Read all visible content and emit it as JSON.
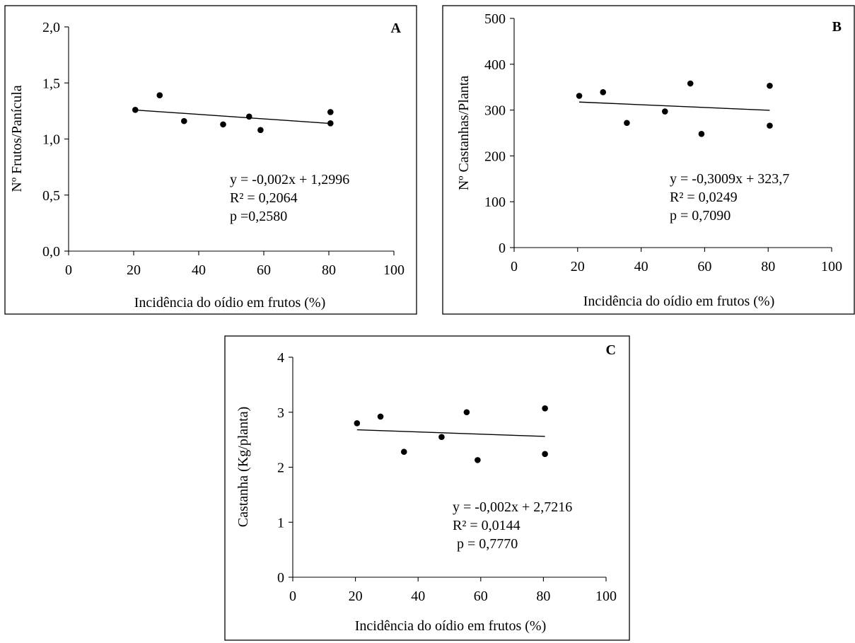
{
  "chart_data": [
    {
      "type": "scatter",
      "panel_label": "A",
      "xlabel": "Incidência do oídio em frutos (%)",
      "ylabel": "Nº Frutos/Panícula",
      "xlim": [
        0,
        100
      ],
      "ylim": [
        0,
        2
      ],
      "x_ticks": [
        "0",
        "20",
        "40",
        "60",
        "80",
        "100"
      ],
      "y_ticks": [
        "0,0",
        "0,5",
        "1,0",
        "1,5",
        "2,0"
      ],
      "points": [
        {
          "x": 20.5,
          "y": 1.26
        },
        {
          "x": 28,
          "y": 1.39
        },
        {
          "x": 35.5,
          "y": 1.16
        },
        {
          "x": 47.5,
          "y": 1.13
        },
        {
          "x": 55.5,
          "y": 1.2
        },
        {
          "x": 59,
          "y": 1.08
        },
        {
          "x": 80.5,
          "y": 1.24
        },
        {
          "x": 80.5,
          "y": 1.14
        }
      ],
      "trendline": {
        "slope": -0.002,
        "intercept": 1.2996,
        "x_range": [
          20.5,
          80.5
        ]
      },
      "annotation": [
        "y = -0,002x + 1,2996",
        "R² = 0,2064",
        "p =0,2580"
      ]
    },
    {
      "type": "scatter",
      "panel_label": "B",
      "xlabel": "Incidência do oídio em frutos (%)",
      "ylabel": "Nº Castanhas/Planta",
      "xlim": [
        0,
        100
      ],
      "ylim": [
        0,
        500
      ],
      "x_ticks": [
        "0",
        "20",
        "40",
        "60",
        "80",
        "100"
      ],
      "y_ticks": [
        "0",
        "100",
        "200",
        "300",
        "400",
        "500"
      ],
      "points": [
        {
          "x": 20.5,
          "y": 331
        },
        {
          "x": 28,
          "y": 339
        },
        {
          "x": 35.5,
          "y": 272
        },
        {
          "x": 47.5,
          "y": 297
        },
        {
          "x": 55.5,
          "y": 358
        },
        {
          "x": 59,
          "y": 248
        },
        {
          "x": 80.5,
          "y": 353
        },
        {
          "x": 80.5,
          "y": 266
        }
      ],
      "trendline": {
        "slope": -0.3009,
        "intercept": 323.7,
        "x_range": [
          20.5,
          80.5
        ]
      },
      "annotation": [
        "y = -0,3009x + 323,7",
        "R² = 0,0249",
        "p = 0,7090"
      ]
    },
    {
      "type": "scatter",
      "panel_label": "C",
      "xlabel": "Incidência do oídio em frutos (%)",
      "ylabel": "Castanha (Kg/planta)",
      "xlim": [
        0,
        100
      ],
      "ylim": [
        0,
        4
      ],
      "x_ticks": [
        "0",
        "20",
        "40",
        "60",
        "80",
        "100"
      ],
      "y_ticks": [
        "0",
        "1",
        "2",
        "3",
        "4"
      ],
      "points": [
        {
          "x": 20.5,
          "y": 2.8
        },
        {
          "x": 28,
          "y": 2.92
        },
        {
          "x": 35.5,
          "y": 2.28
        },
        {
          "x": 47.5,
          "y": 2.55
        },
        {
          "x": 55.5,
          "y": 3.0
        },
        {
          "x": 59,
          "y": 2.13
        },
        {
          "x": 80.5,
          "y": 3.07
        },
        {
          "x": 80.5,
          "y": 2.24
        }
      ],
      "trendline": {
        "slope": -0.002,
        "intercept": 2.7216,
        "x_range": [
          20.5,
          80.5
        ]
      },
      "annotation": [
        "y = -0,002x + 2,7216",
        "R² = 0,0144",
        "p = 0,7770"
      ]
    }
  ]
}
